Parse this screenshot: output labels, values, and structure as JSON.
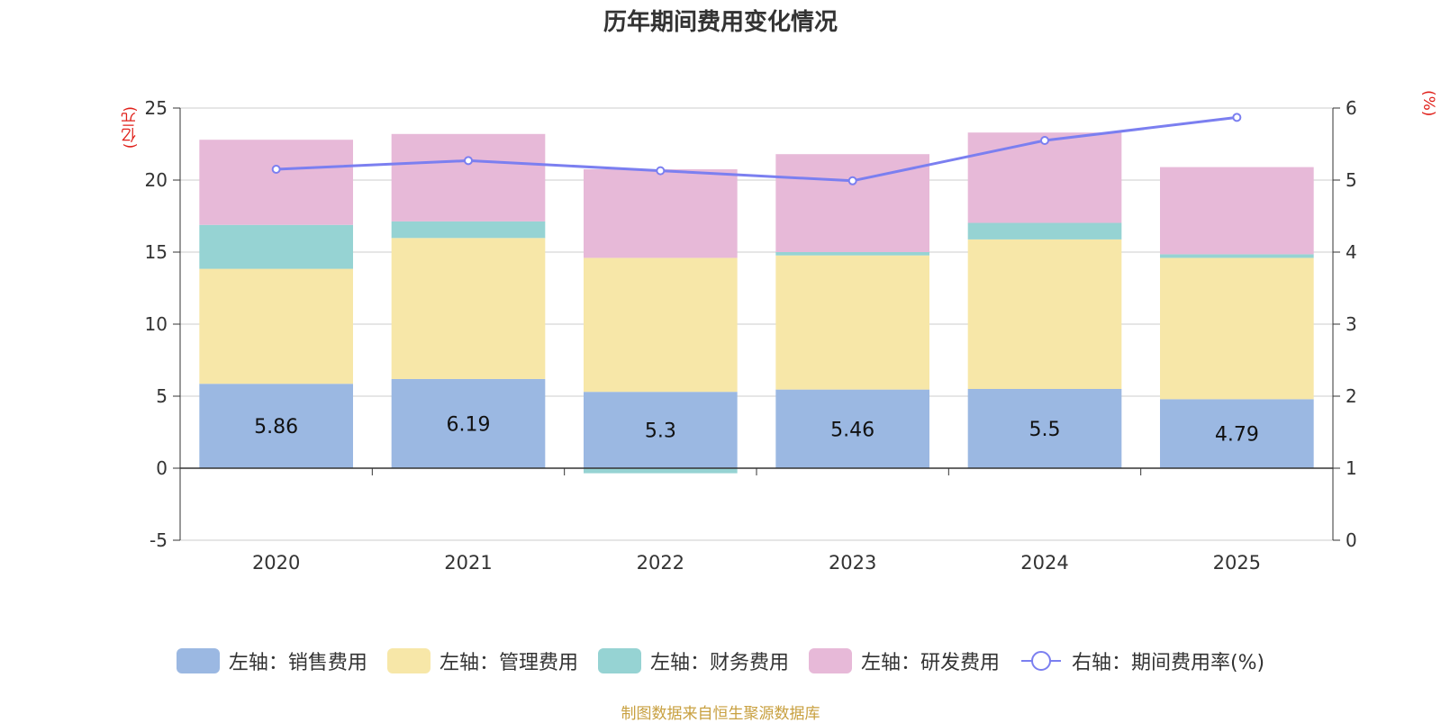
{
  "chart_data": {
    "type": "bar",
    "stacked": true,
    "title": "历年期间费用变化情况",
    "categories": [
      "2020",
      "2021",
      "2022",
      "2023",
      "2024",
      "2025"
    ],
    "series": [
      {
        "name": "左轴：销售费用",
        "axis": "left",
        "color": "#9bb8e2",
        "values": [
          5.86,
          6.19,
          5.3,
          5.46,
          5.5,
          4.79
        ]
      },
      {
        "name": "左轴：管理费用",
        "axis": "left",
        "color": "#f7e7a8",
        "values": [
          7.98,
          9.79,
          9.3,
          9.31,
          10.38,
          9.81
        ]
      },
      {
        "name": "左轴：财务费用",
        "axis": "left",
        "color": "#96d3d3",
        "values": [
          3.05,
          1.15,
          -0.35,
          0.23,
          1.15,
          0.25
        ]
      },
      {
        "name": "左轴：研发费用",
        "axis": "left",
        "color": "#e7b9d8",
        "values": [
          5.91,
          6.07,
          6.15,
          6.8,
          6.27,
          6.05
        ]
      }
    ],
    "line": {
      "name": "右轴：期间费用率(%)",
      "axis": "right",
      "color": "#7b7ff0",
      "values": [
        5.15,
        5.27,
        5.13,
        4.99,
        5.55,
        5.87
      ]
    },
    "data_labels": [
      "5.86",
      "6.19",
      "5.3",
      "5.46",
      "5.5",
      "4.79"
    ],
    "y_left": {
      "label": "(亿元)",
      "range": [
        -5,
        25
      ],
      "ticks": [
        "-5",
        "0",
        "5",
        "10",
        "15",
        "20",
        "25"
      ]
    },
    "y_right": {
      "label": "(%)",
      "range": [
        0,
        6
      ],
      "ticks": [
        "0",
        "1",
        "2",
        "3",
        "4",
        "5",
        "6"
      ]
    },
    "grid": true,
    "legend_position": "bottom-center",
    "source": "制图数据来自恒生聚源数据库"
  }
}
